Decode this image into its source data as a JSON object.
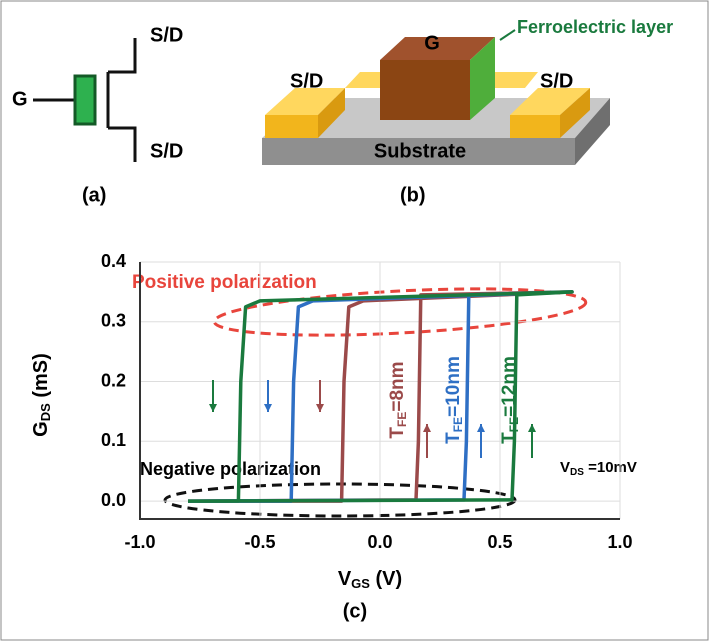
{
  "diagram_a": {
    "label": "(a)",
    "gate": "G",
    "terminals": [
      "S/D",
      "S/D"
    ]
  },
  "diagram_b": {
    "label": "(b)",
    "gate": "G",
    "layer": "Ferroelectric layer",
    "terminals": [
      "S/D",
      "S/D"
    ],
    "substrate": "Substrate"
  },
  "chart_data": {
    "type": "line",
    "title": "(c)",
    "xlabel": [
      "V",
      "GS",
      " (V)"
    ],
    "ylabel": [
      "G",
      "DS",
      " (mS)"
    ],
    "xlim": [
      -1,
      1
    ],
    "ylim": [
      -0.03,
      0.4
    ],
    "xticks": [
      {
        "value": -1,
        "label": "-1.0"
      },
      -0.5,
      {
        "value": 0,
        "label": "0.0"
      },
      0.5,
      {
        "value": 1,
        "label": "1.0"
      }
    ],
    "yticks": [
      {
        "value": 0,
        "label": "0.0"
      },
      0.1,
      0.2,
      0.3,
      0.4
    ],
    "grid": true,
    "series": [
      {
        "name": [
          "T",
          "FE",
          "=8nm"
        ],
        "color": "#9b4a4a",
        "x": [
          -0.8,
          0.15,
          0.16,
          0.17,
          0.8,
          -0.07,
          -0.13,
          -0.15,
          -0.16,
          -0.8
        ],
        "values": [
          0,
          0.002,
          0.1,
          0.345,
          0.35,
          0.335,
          0.325,
          0.2,
          0,
          0
        ]
      },
      {
        "name": [
          "T",
          "FE",
          "=10nm"
        ],
        "color": "#2e6fc4",
        "x": [
          -0.8,
          0.35,
          0.36,
          0.37,
          0.8,
          -0.28,
          -0.34,
          -0.36,
          -0.37,
          -0.8
        ],
        "values": [
          0,
          0.002,
          0.1,
          0.345,
          0.35,
          0.335,
          0.325,
          0.2,
          0,
          0
        ]
      },
      {
        "name": [
          "T",
          "FE",
          "=12nm"
        ],
        "color": "#1a7a3e",
        "x": [
          -0.8,
          0.55,
          0.56,
          0.57,
          0.8,
          -0.5,
          -0.56,
          -0.58,
          -0.59,
          -0.8
        ],
        "values": [
          0,
          0.002,
          0.1,
          0.345,
          0.35,
          0.335,
          0.325,
          0.2,
          0,
          0
        ]
      }
    ],
    "annotations": {
      "positive": "Positive polarization",
      "negative": "Negative polarization",
      "vds": [
        "V",
        "DS",
        " =10mV"
      ]
    }
  }
}
